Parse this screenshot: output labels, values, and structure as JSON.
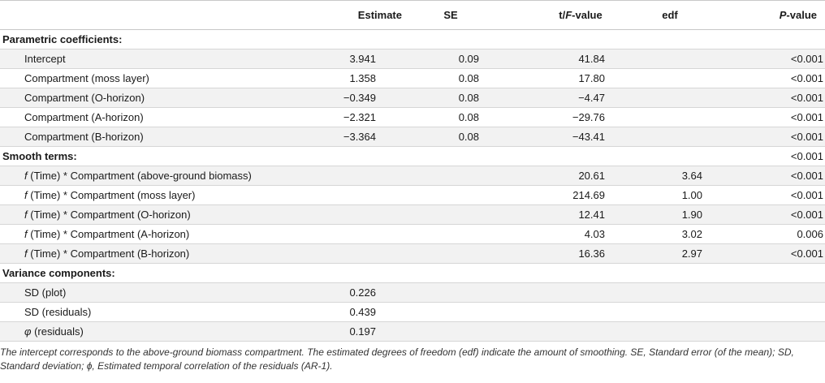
{
  "header": {
    "col1": "",
    "estimate": "Estimate",
    "se": "SE",
    "t_prefix": "t/",
    "t_f": "F",
    "t_suffix": "-value",
    "edf": "edf",
    "p_italic": "P",
    "p_suffix": "-value"
  },
  "sections": {
    "parametric": "Parametric coefficients:",
    "smooth": "Smooth terms:",
    "variance": "Variance components:"
  },
  "parametric_rows": [
    {
      "label": "Intercept",
      "estimate": "3.941",
      "se": "0.09",
      "t": "41.84",
      "edf": "",
      "p": "<0.001"
    },
    {
      "label": "Compartment (moss layer)",
      "estimate": "1.358",
      "se": "0.08",
      "t": "17.80",
      "edf": "",
      "p": "<0.001"
    },
    {
      "label": "Compartment (O-horizon)",
      "estimate": "−0.349",
      "se": "0.08",
      "t": "−4.47",
      "edf": "",
      "p": "<0.001"
    },
    {
      "label": "Compartment (A-horizon)",
      "estimate": "−2.321",
      "se": "0.08",
      "t": "−29.76",
      "edf": "",
      "p": "<0.001"
    },
    {
      "label": "Compartment (B-horizon)",
      "estimate": "−3.364",
      "se": "0.08",
      "t": "−43.41",
      "edf": "",
      "p": "<0.001"
    }
  ],
  "smooth_section_p": "<0.001",
  "smooth_rows": [
    {
      "f": "f",
      "label": " (Time) * Compartment (above-ground biomass)",
      "t": "20.61",
      "edf": "3.64",
      "p": "<0.001"
    },
    {
      "f": "f",
      "label": " (Time) * Compartment (moss layer)",
      "t": "214.69",
      "edf": "1.00",
      "p": "<0.001"
    },
    {
      "f": "f",
      "label": " (Time) * Compartment (O-horizon)",
      "t": "12.41",
      "edf": "1.90",
      "p": "<0.001"
    },
    {
      "f": "f",
      "label": " (Time) * Compartment (A-horizon)",
      "t": "4.03",
      "edf": "3.02",
      "p": "0.006"
    },
    {
      "f": "f",
      "label": " (Time) * Compartment (B-horizon)",
      "t": "16.36",
      "edf": "2.97",
      "p": "<0.001"
    }
  ],
  "variance_rows": [
    {
      "label": "SD (plot)",
      "estimate": "0.226"
    },
    {
      "label": "SD (residuals)",
      "estimate": "0.439"
    },
    {
      "label_italic": "φ",
      "label": " (residuals)",
      "estimate": "0.197"
    }
  ],
  "footnote": "The intercept corresponds to the above-ground biomass compartment. The estimated degrees of freedom (edf) indicate the amount of smoothing. SE, Standard error (of the mean); SD, Standard deviation; ϕ, Estimated temporal correlation of the residuals (AR-1)."
}
